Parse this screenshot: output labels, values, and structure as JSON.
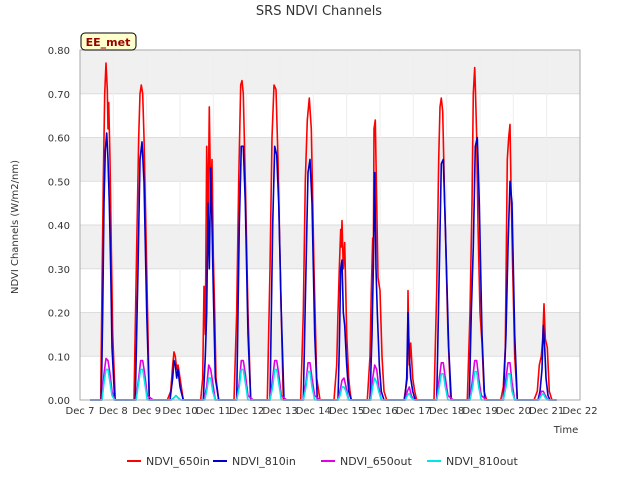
{
  "chart_data": {
    "type": "line",
    "title": "SRS NDVI Channels",
    "ylabel": "NDVI Channels (W/m2/nm)",
    "xlabel": "Time",
    "ylim": [
      0,
      0.8
    ],
    "xlim": [
      7,
      22
    ],
    "grid": true,
    "legend_placement": "bottom",
    "annotation": "EE_met",
    "y_ticks": [
      {
        "value": 0.0,
        "label": "0.00"
      },
      {
        "value": 0.1,
        "label": "0.10"
      },
      {
        "value": 0.2,
        "label": "0.20"
      },
      {
        "value": 0.3,
        "label": "0.30"
      },
      {
        "value": 0.4,
        "label": "0.40"
      },
      {
        "value": 0.5,
        "label": "0.50"
      },
      {
        "value": 0.6,
        "label": "0.60"
      },
      {
        "value": 0.7,
        "label": "0.70"
      },
      {
        "value": 0.8,
        "label": "0.80"
      }
    ],
    "x_ticks": [
      {
        "value": 7,
        "label": "Dec 7"
      },
      {
        "value": 8,
        "label": "Dec 8"
      },
      {
        "value": 9,
        "label": "Dec 9"
      },
      {
        "value": 10,
        "label": "Dec 10"
      },
      {
        "value": 11,
        "label": "Dec 11"
      },
      {
        "value": 12,
        "label": "Dec 12"
      },
      {
        "value": 13,
        "label": "Dec 13"
      },
      {
        "value": 14,
        "label": "Dec 14"
      },
      {
        "value": 15,
        "label": "Dec 15"
      },
      {
        "value": 16,
        "label": "Dec 16"
      },
      {
        "value": 17,
        "label": "Dec 17"
      },
      {
        "value": 18,
        "label": "Dec 18"
      },
      {
        "value": 19,
        "label": "Dec 19"
      },
      {
        "value": 20,
        "label": "Dec 20"
      },
      {
        "value": 21,
        "label": "Dec 21"
      },
      {
        "value": 22,
        "label": "Dec 22"
      }
    ],
    "series": [
      {
        "name": "NDVI_650in",
        "color": "#ff0000",
        "x": [
          7.3,
          7.62,
          7.66,
          7.7,
          7.74,
          7.78,
          7.82,
          7.84,
          7.86,
          7.9,
          7.94,
          7.98,
          8.06,
          8.12,
          8.2,
          8.62,
          8.7,
          8.76,
          8.8,
          8.84,
          8.88,
          8.92,
          9.0,
          9.08,
          9.12,
          9.2,
          9.62,
          9.72,
          9.78,
          9.82,
          9.86,
          9.9,
          9.94,
          10.0,
          10.1,
          10.62,
          10.68,
          10.72,
          10.76,
          10.8,
          10.84,
          10.88,
          10.92,
          10.96,
          11.0,
          11.04,
          11.08,
          11.16,
          11.62,
          11.7,
          11.76,
          11.82,
          11.86,
          11.9,
          11.96,
          12.04,
          12.12,
          12.2,
          12.62,
          12.7,
          12.76,
          12.82,
          12.88,
          12.94,
          13.02,
          13.1,
          13.2,
          13.62,
          13.7,
          13.76,
          13.82,
          13.88,
          13.94,
          14.02,
          14.1,
          14.2,
          14.62,
          14.7,
          14.74,
          14.78,
          14.82,
          14.84,
          14.86,
          14.9,
          14.94,
          15.0,
          15.06,
          15.1,
          15.14,
          15.2,
          15.62,
          15.7,
          15.74,
          15.78,
          15.8,
          15.82,
          15.86,
          15.9,
          15.94,
          16.0,
          16.06,
          16.12,
          16.2,
          16.62,
          16.72,
          16.78,
          16.82,
          16.84,
          16.86,
          16.88,
          16.92,
          16.98,
          17.04,
          17.1,
          17.62,
          17.7,
          17.76,
          17.8,
          17.84,
          17.88,
          17.94,
          18.04,
          18.12,
          18.2,
          18.62,
          18.7,
          18.76,
          18.8,
          18.84,
          18.86,
          18.9,
          18.94,
          19.0,
          19.06,
          19.12,
          19.2,
          19.62,
          19.7,
          19.76,
          19.82,
          19.86,
          19.9,
          19.94,
          19.98,
          20.04,
          20.12,
          20.2,
          20.62,
          20.72,
          20.78,
          20.84,
          20.88,
          20.92,
          20.96,
          21.02,
          21.08,
          21.16,
          21.3
        ],
        "values": [
          0.0,
          0.0,
          0.26,
          0.5,
          0.7,
          0.77,
          0.71,
          0.62,
          0.68,
          0.55,
          0.35,
          0.15,
          0.0,
          0.0,
          0.0,
          0.0,
          0.35,
          0.6,
          0.7,
          0.72,
          0.7,
          0.6,
          0.3,
          0.0,
          0.0,
          0.0,
          0.0,
          0.02,
          0.08,
          0.11,
          0.1,
          0.07,
          0.08,
          0.05,
          0.0,
          0.0,
          0.05,
          0.26,
          0.15,
          0.58,
          0.4,
          0.67,
          0.45,
          0.55,
          0.33,
          0.2,
          0.05,
          0.0,
          0.0,
          0.2,
          0.5,
          0.72,
          0.73,
          0.7,
          0.5,
          0.2,
          0.0,
          0.0,
          0.0,
          0.3,
          0.6,
          0.72,
          0.71,
          0.55,
          0.25,
          0.0,
          0.0,
          0.0,
          0.2,
          0.5,
          0.64,
          0.69,
          0.62,
          0.3,
          0.05,
          0.0,
          0.0,
          0.08,
          0.2,
          0.3,
          0.39,
          0.35,
          0.41,
          0.3,
          0.36,
          0.15,
          0.05,
          0.02,
          0.0,
          0.0,
          0.0,
          0.1,
          0.25,
          0.37,
          0.3,
          0.62,
          0.64,
          0.45,
          0.28,
          0.25,
          0.1,
          0.02,
          0.0,
          0.0,
          0.0,
          0.03,
          0.05,
          0.25,
          0.15,
          0.08,
          0.13,
          0.05,
          0.02,
          0.0,
          0.0,
          0.25,
          0.55,
          0.67,
          0.69,
          0.66,
          0.45,
          0.15,
          0.0,
          0.0,
          0.0,
          0.2,
          0.45,
          0.7,
          0.76,
          0.72,
          0.6,
          0.4,
          0.2,
          0.13,
          0.02,
          0.0,
          0.0,
          0.03,
          0.12,
          0.55,
          0.6,
          0.63,
          0.45,
          0.3,
          0.1,
          0.0,
          0.0,
          0.0,
          0.02,
          0.08,
          0.1,
          0.14,
          0.22,
          0.14,
          0.12,
          0.02,
          0.0,
          0.0
        ]
      },
      {
        "name": "NDVI_810in",
        "color": "#0000cc",
        "x": [
          7.3,
          7.64,
          7.68,
          7.72,
          7.76,
          7.8,
          7.84,
          7.88,
          7.92,
          7.96,
          8.04,
          8.12,
          8.2,
          8.66,
          8.74,
          8.8,
          8.86,
          8.92,
          9.0,
          9.08,
          9.2,
          9.7,
          9.78,
          9.82,
          9.86,
          9.9,
          9.94,
          10.0,
          10.1,
          10.7,
          10.76,
          10.8,
          10.84,
          10.88,
          10.92,
          10.96,
          11.0,
          11.06,
          11.16,
          11.7,
          11.78,
          11.84,
          11.9,
          11.96,
          12.04,
          12.12,
          12.2,
          12.7,
          12.78,
          12.84,
          12.9,
          12.96,
          13.04,
          13.12,
          13.2,
          13.7,
          13.78,
          13.84,
          13.9,
          13.96,
          14.04,
          14.12,
          14.2,
          14.74,
          14.78,
          14.82,
          14.86,
          14.9,
          14.94,
          15.0,
          15.06,
          15.14,
          15.2,
          15.7,
          15.76,
          15.8,
          15.84,
          15.88,
          15.92,
          15.98,
          16.04,
          16.12,
          16.2,
          16.74,
          16.8,
          16.84,
          16.88,
          16.92,
          16.98,
          17.06,
          17.14,
          17.7,
          17.78,
          17.84,
          17.9,
          17.96,
          18.06,
          18.14,
          18.2,
          18.68,
          18.74,
          18.8,
          18.86,
          18.92,
          18.98,
          19.06,
          19.14,
          19.2,
          19.7,
          19.78,
          19.84,
          19.9,
          19.96,
          20.04,
          20.12,
          20.2,
          20.74,
          20.8,
          20.86,
          20.9,
          20.94,
          20.98,
          21.04,
          21.1,
          21.3
        ],
        "values": [
          0.0,
          0.0,
          0.2,
          0.45,
          0.57,
          0.61,
          0.55,
          0.45,
          0.3,
          0.12,
          0.0,
          0.0,
          0.0,
          0.0,
          0.3,
          0.55,
          0.59,
          0.5,
          0.2,
          0.0,
          0.0,
          0.0,
          0.05,
          0.09,
          0.08,
          0.05,
          0.07,
          0.03,
          0.0,
          0.0,
          0.1,
          0.2,
          0.45,
          0.3,
          0.53,
          0.4,
          0.25,
          0.05,
          0.0,
          0.0,
          0.4,
          0.58,
          0.58,
          0.45,
          0.15,
          0.0,
          0.0,
          0.0,
          0.4,
          0.58,
          0.56,
          0.45,
          0.2,
          0.0,
          0.0,
          0.0,
          0.3,
          0.52,
          0.55,
          0.45,
          0.15,
          0.0,
          0.0,
          0.0,
          0.12,
          0.3,
          0.32,
          0.2,
          0.17,
          0.08,
          0.02,
          0.0,
          0.0,
          0.0,
          0.15,
          0.3,
          0.52,
          0.3,
          0.2,
          0.08,
          0.02,
          0.0,
          0.0,
          0.0,
          0.05,
          0.2,
          0.1,
          0.05,
          0.02,
          0.0,
          0.0,
          0.0,
          0.3,
          0.54,
          0.55,
          0.4,
          0.12,
          0.0,
          0.0,
          0.0,
          0.2,
          0.35,
          0.58,
          0.6,
          0.45,
          0.15,
          0.0,
          0.0,
          0.0,
          0.15,
          0.35,
          0.5,
          0.45,
          0.15,
          0.0,
          0.0,
          0.0,
          0.02,
          0.07,
          0.17,
          0.12,
          0.05,
          0.01,
          0.0,
          0.0
        ]
      },
      {
        "name": "NDVI_650out",
        "color": "#e000e0",
        "x": [
          7.3,
          7.66,
          7.72,
          7.78,
          7.84,
          7.9,
          7.96,
          8.04,
          8.2,
          8.68,
          8.76,
          8.82,
          8.88,
          8.94,
          9.02,
          9.2,
          9.74,
          9.82,
          9.88,
          9.94,
          10.02,
          10.2,
          10.72,
          10.8,
          10.86,
          10.92,
          10.98,
          11.06,
          11.2,
          11.7,
          11.78,
          11.84,
          11.9,
          11.96,
          12.04,
          12.2,
          12.7,
          12.78,
          12.84,
          12.9,
          12.96,
          13.04,
          13.2,
          13.7,
          13.78,
          13.84,
          13.9,
          13.96,
          14.04,
          14.2,
          14.74,
          14.8,
          14.86,
          14.92,
          14.98,
          15.06,
          15.2,
          15.72,
          15.78,
          15.84,
          15.9,
          15.96,
          16.04,
          16.2,
          16.76,
          16.82,
          16.88,
          16.94,
          17.02,
          17.2,
          17.7,
          17.78,
          17.84,
          17.9,
          17.96,
          18.04,
          18.2,
          18.7,
          18.78,
          18.84,
          18.9,
          18.96,
          19.04,
          19.2,
          19.7,
          19.78,
          19.84,
          19.9,
          19.96,
          20.04,
          20.2,
          20.76,
          20.84,
          20.9,
          20.96,
          21.04,
          21.3
        ],
        "values": [
          0.0,
          0.0,
          0.06,
          0.095,
          0.09,
          0.06,
          0.02,
          0.0,
          0.0,
          0.0,
          0.05,
          0.09,
          0.09,
          0.06,
          0.01,
          0.0,
          0.0,
          0.005,
          0.01,
          0.005,
          0.0,
          0.0,
          0.0,
          0.03,
          0.08,
          0.07,
          0.04,
          0.0,
          0.0,
          0.0,
          0.04,
          0.09,
          0.09,
          0.06,
          0.01,
          0.0,
          0.0,
          0.05,
          0.09,
          0.09,
          0.06,
          0.01,
          0.0,
          0.0,
          0.04,
          0.085,
          0.085,
          0.05,
          0.01,
          0.0,
          0.0,
          0.02,
          0.045,
          0.05,
          0.03,
          0.0,
          0.0,
          0.0,
          0.05,
          0.08,
          0.07,
          0.03,
          0.0,
          0.0,
          0.0,
          0.02,
          0.03,
          0.01,
          0.0,
          0.0,
          0.0,
          0.05,
          0.085,
          0.085,
          0.05,
          0.01,
          0.0,
          0.0,
          0.05,
          0.09,
          0.09,
          0.05,
          0.01,
          0.0,
          0.0,
          0.05,
          0.085,
          0.085,
          0.04,
          0.0,
          0.0,
          0.0,
          0.02,
          0.02,
          0.01,
          0.0,
          0.0
        ]
      },
      {
        "name": "NDVI_810out",
        "color": "#00e5e5",
        "x": [
          7.3,
          7.66,
          7.72,
          7.78,
          7.84,
          7.9,
          7.96,
          8.04,
          8.2,
          8.68,
          8.76,
          8.82,
          8.88,
          8.94,
          9.02,
          9.2,
          9.74,
          9.82,
          9.88,
          9.94,
          10.02,
          10.2,
          10.74,
          10.8,
          10.86,
          10.92,
          10.98,
          11.06,
          11.2,
          11.7,
          11.78,
          11.84,
          11.9,
          11.96,
          12.04,
          12.2,
          12.7,
          12.78,
          12.84,
          12.9,
          12.96,
          13.04,
          13.2,
          13.7,
          13.78,
          13.84,
          13.9,
          13.96,
          14.04,
          14.2,
          14.74,
          14.8,
          14.86,
          14.92,
          14.98,
          15.06,
          15.2,
          15.72,
          15.78,
          15.84,
          15.9,
          15.96,
          16.04,
          16.2,
          16.76,
          16.82,
          16.88,
          16.94,
          17.02,
          17.2,
          17.7,
          17.78,
          17.84,
          17.9,
          17.96,
          18.04,
          18.2,
          18.7,
          18.78,
          18.84,
          18.9,
          18.96,
          19.04,
          19.2,
          19.7,
          19.78,
          19.84,
          19.9,
          19.96,
          20.04,
          20.2,
          20.76,
          20.84,
          20.9,
          20.96,
          21.04,
          21.3
        ],
        "values": [
          0.0,
          0.0,
          0.04,
          0.07,
          0.07,
          0.04,
          0.01,
          0.0,
          0.0,
          0.0,
          0.04,
          0.07,
          0.07,
          0.04,
          0.0,
          0.0,
          0.0,
          0.005,
          0.01,
          0.005,
          0.0,
          0.0,
          0.0,
          0.02,
          0.05,
          0.05,
          0.02,
          0.0,
          0.0,
          0.0,
          0.03,
          0.07,
          0.07,
          0.04,
          0.0,
          0.0,
          0.0,
          0.03,
          0.07,
          0.07,
          0.04,
          0.0,
          0.0,
          0.0,
          0.03,
          0.065,
          0.065,
          0.03,
          0.0,
          0.0,
          0.0,
          0.01,
          0.03,
          0.03,
          0.02,
          0.0,
          0.0,
          0.0,
          0.03,
          0.05,
          0.04,
          0.02,
          0.0,
          0.0,
          0.0,
          0.01,
          0.015,
          0.005,
          0.0,
          0.0,
          0.0,
          0.03,
          0.06,
          0.06,
          0.03,
          0.0,
          0.0,
          0.0,
          0.03,
          0.065,
          0.065,
          0.03,
          0.0,
          0.0,
          0.0,
          0.03,
          0.06,
          0.06,
          0.02,
          0.0,
          0.0,
          0.0,
          0.01,
          0.015,
          0.005,
          0.0,
          0.0
        ]
      }
    ]
  }
}
